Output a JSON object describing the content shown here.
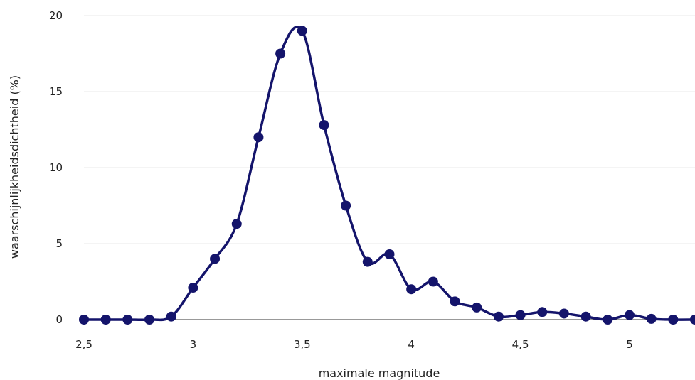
{
  "colors": {
    "series": "#14146b",
    "grid": "#e9e9e9",
    "axis": "#333333",
    "text": "#222222"
  },
  "chart_data": {
    "type": "line",
    "title": "",
    "xlabel": "maximale magnitude",
    "ylabel": "waarschijnlijkheidsdichtheid (%)",
    "xlim": [
      2.5,
      5.3
    ],
    "ylim": [
      0,
      20
    ],
    "x_ticks": [
      2.5,
      3,
      3.5,
      4,
      4.5,
      5
    ],
    "x_tick_labels": [
      "2,5",
      "3",
      "3,5",
      "4",
      "4,5",
      "5"
    ],
    "y_ticks": [
      0,
      5,
      10,
      15,
      20
    ],
    "y_tick_labels": [
      "0",
      "5",
      "10",
      "15",
      "20"
    ],
    "grid": "horizontal",
    "legend": "none",
    "smooth": true,
    "series": [
      {
        "x": [
          2.5,
          2.6,
          2.7,
          2.8,
          2.9,
          3.0,
          3.1,
          3.2,
          3.3,
          3.4,
          3.5,
          3.6,
          3.7,
          3.8,
          3.9,
          4.0,
          4.1,
          4.2,
          4.3,
          4.4,
          4.5,
          4.6,
          4.7,
          4.8,
          4.9,
          5.0,
          5.1,
          5.2,
          5.3
        ],
        "y": [
          0,
          0,
          0,
          0,
          0.2,
          2.1,
          4.0,
          6.3,
          12.0,
          17.5,
          19.0,
          12.8,
          7.5,
          3.8,
          4.3,
          2.0,
          2.5,
          1.2,
          0.8,
          0.2,
          0.3,
          0.5,
          0.4,
          0.2,
          0,
          0.3,
          0.05,
          0,
          0
        ]
      }
    ]
  }
}
